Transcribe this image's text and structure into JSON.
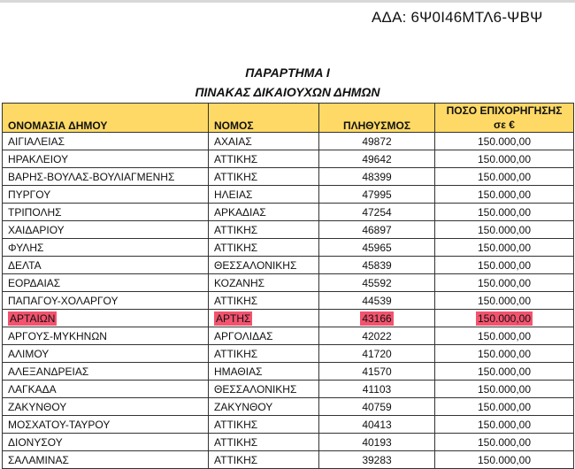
{
  "header": {
    "ada": "ΑΔΑ: 6Ψ0Ι46ΜΤΛ6-ΨΒΨ"
  },
  "document": {
    "title": "ΠΑΡΑΡΤΗΜΑ Ι",
    "subtitle": "ΠΙΝΑΚΑΣ ΔΙΚΑΙΟΥΧΩΝ ΔΗΜΩΝ"
  },
  "table": {
    "columns": [
      "ΟΝΟΜΑΣΙΑ ΔΗΜΟΥ",
      "ΝΟΜΟΣ",
      "ΠΛΗΘΥΣΜΟΣ",
      "ΠΟΣΟ ΕΠΙΧΟΡΗΓΗΣΗΣ σε €"
    ],
    "header_color": "#fed966",
    "highlight_color": "#f2536e",
    "rows": [
      {
        "municipality": "ΑΙΓΙΑΛΕΙΑΣ",
        "prefecture": "ΑΧΑΙΑΣ",
        "population": "49872",
        "amount": "150.000,00"
      },
      {
        "municipality": "ΗΡΑΚΛΕΙΟΥ",
        "prefecture": "ΑΤΤΙΚΗΣ",
        "population": "49642",
        "amount": "150.000,00"
      },
      {
        "municipality": "ΒΑΡΗΣ-ΒΟΥΛΑΣ-ΒΟΥΛΙΑΓΜΕΝΗΣ",
        "prefecture": "ΑΤΤΙΚΗΣ",
        "population": "48399",
        "amount": "150.000,00"
      },
      {
        "municipality": "ΠΥΡΓΟΥ",
        "prefecture": "ΗΛΕΙΑΣ",
        "population": "47995",
        "amount": "150.000,00"
      },
      {
        "municipality": "ΤΡΙΠΟΛΗΣ",
        "prefecture": "ΑΡΚΑΔΙΑΣ",
        "population": "47254",
        "amount": "150.000,00"
      },
      {
        "municipality": "ΧΑΙΔΑΡΙΟΥ",
        "prefecture": "ΑΤΤΙΚΗΣ",
        "population": "46897",
        "amount": "150.000,00"
      },
      {
        "municipality": "ΦΥΛΗΣ",
        "prefecture": "ΑΤΤΙΚΗΣ",
        "population": "45965",
        "amount": "150.000,00"
      },
      {
        "municipality": "ΔΕΛΤΑ",
        "prefecture": "ΘΕΣΣΑΛΟΝΙΚΗΣ",
        "population": "45839",
        "amount": "150.000,00"
      },
      {
        "municipality": "ΕΟΡΔΑΙΑΣ",
        "prefecture": "ΚΟΖΑΝΗΣ",
        "population": "45592",
        "amount": "150.000,00"
      },
      {
        "municipality": "ΠΑΠΑΓΟΥ-ΧΟΛΑΡΓΟΥ",
        "prefecture": "ΑΤΤΙΚΗΣ",
        "population": "44539",
        "amount": "150.000,00"
      },
      {
        "municipality": "ΑΡΤΑΙΩΝ",
        "prefecture": "ΑΡΤΗΣ",
        "population": "43166",
        "amount": "150.000,00",
        "highlighted": true
      },
      {
        "municipality": "ΑΡΓΟΥΣ-ΜΥΚΗΝΩΝ",
        "prefecture": "ΑΡΓΟΛΙΔΑΣ",
        "population": "42022",
        "amount": "150.000,00"
      },
      {
        "municipality": "ΑΛΙΜΟΥ",
        "prefecture": "ΑΤΤΙΚΗΣ",
        "population": "41720",
        "amount": "150.000,00"
      },
      {
        "municipality": "ΑΛΕΞΑΝΔΡΕΙΑΣ",
        "prefecture": "ΗΜΑΘΙΑΣ",
        "population": "41570",
        "amount": "150.000,00"
      },
      {
        "municipality": "ΛΑΓΚΑΔΑ",
        "prefecture": "ΘΕΣΣΑΛΟΝΙΚΗΣ",
        "population": "41103",
        "amount": "150.000,00"
      },
      {
        "municipality": "ΖΑΚΥΝΘΟΥ",
        "prefecture": "ΖΑΚΥΝΘΟΥ",
        "population": "40759",
        "amount": "150.000,00"
      },
      {
        "municipality": "ΜΟΣΧΑΤΟΥ-ΤΑΥΡΟΥ",
        "prefecture": "ΑΤΤΙΚΗΣ",
        "population": "40413",
        "amount": "150.000,00"
      },
      {
        "municipality": "ΔΙΟΝΥΣΟΥ",
        "prefecture": "ΑΤΤΙΚΗΣ",
        "population": "40193",
        "amount": "150.000,00"
      },
      {
        "municipality": "ΣΑΛΑΜΙΝΑΣ",
        "prefecture": "ΑΤΤΙΚΗΣ",
        "population": "39283",
        "amount": "150.000,00"
      }
    ]
  }
}
